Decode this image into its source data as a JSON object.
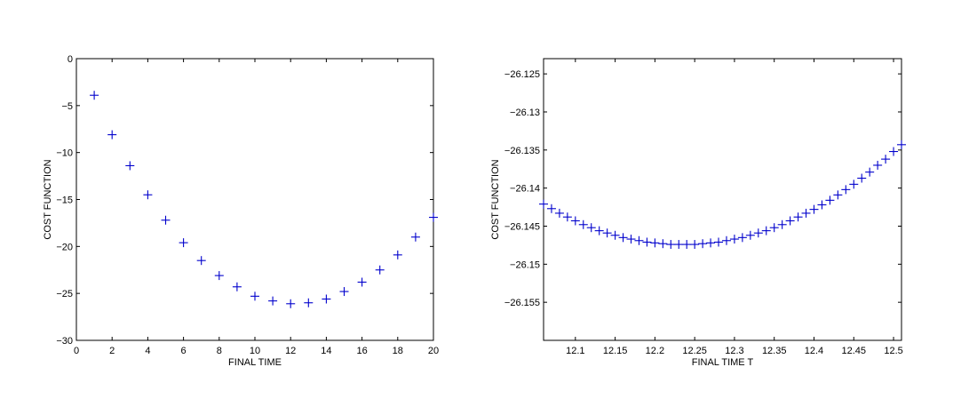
{
  "chart_data": [
    {
      "type": "scatter",
      "marker": "+",
      "marker_color": "#0000cc",
      "xlabel": "FINAL TIME",
      "ylabel": "COST FUNCTION",
      "xlim": [
        0,
        20
      ],
      "ylim": [
        -30,
        0
      ],
      "xticks": [
        0,
        2,
        4,
        6,
        8,
        10,
        12,
        14,
        16,
        18,
        20
      ],
      "xtick_labels": [
        "0",
        "2",
        "4",
        "6",
        "8",
        "10",
        "12",
        "14",
        "16",
        "18",
        "20"
      ],
      "yticks": [
        0,
        -5,
        -10,
        -15,
        -20,
        -25,
        -30
      ],
      "ytick_labels": [
        "0",
        "−5",
        "−10",
        "−15",
        "−20",
        "−25",
        "−30"
      ],
      "grid": false,
      "x": [
        1,
        2,
        3,
        4,
        5,
        6,
        7,
        8,
        9,
        10,
        11,
        12,
        13,
        14,
        15,
        16,
        17,
        18,
        19,
        20
      ],
      "y": [
        -3.9,
        -8.1,
        -11.4,
        -14.5,
        -17.2,
        -19.6,
        -21.5,
        -23.1,
        -24.3,
        -25.3,
        -25.8,
        -26.1,
        -26.0,
        -25.6,
        -24.8,
        -23.8,
        -22.5,
        -20.9,
        -19.0,
        -16.9
      ]
    },
    {
      "type": "scatter",
      "marker": "+",
      "marker_color": "#0000cc",
      "xlabel": "FINAL TIME T",
      "ylabel": "COST FUNCTION",
      "xlim": [
        12.06,
        12.51
      ],
      "ylim": [
        -26.16,
        -26.123
      ],
      "xticks": [
        12.1,
        12.15,
        12.2,
        12.25,
        12.3,
        12.35,
        12.4,
        12.45,
        12.5
      ],
      "xtick_labels": [
        "12.1",
        "12.15",
        "12.2",
        "12.25",
        "12.3",
        "12.35",
        "12.4",
        "12.45",
        "12.5"
      ],
      "yticks": [
        -26.125,
        -26.13,
        -26.135,
        -26.14,
        -26.145,
        -26.15,
        -26.155
      ],
      "ytick_labels": [
        "−26.125",
        "−26.13",
        "−26.135",
        "−26.14",
        "−26.145",
        "−26.15",
        "−26.155"
      ],
      "grid": false,
      "x": [
        12.06,
        12.07,
        12.08,
        12.09,
        12.1,
        12.11,
        12.12,
        12.13,
        12.14,
        12.15,
        12.16,
        12.17,
        12.18,
        12.19,
        12.2,
        12.21,
        12.22,
        12.23,
        12.24,
        12.25,
        12.26,
        12.27,
        12.28,
        12.29,
        12.3,
        12.31,
        12.32,
        12.33,
        12.34,
        12.35,
        12.36,
        12.37,
        12.38,
        12.39,
        12.4,
        12.41,
        12.42,
        12.43,
        12.44,
        12.45,
        12.46,
        12.47,
        12.48,
        12.49,
        12.5,
        12.51
      ],
      "y": [
        -26.1421,
        -26.1427,
        -26.1433,
        -26.1438,
        -26.1443,
        -26.1448,
        -26.1452,
        -26.1456,
        -26.1459,
        -26.1462,
        -26.1465,
        -26.1467,
        -26.1469,
        -26.1471,
        -26.1472,
        -26.1473,
        -26.1474,
        -26.1474,
        -26.1474,
        -26.1474,
        -26.1473,
        -26.1472,
        -26.1471,
        -26.1469,
        -26.1467,
        -26.1465,
        -26.1462,
        -26.1459,
        -26.1456,
        -26.1452,
        -26.1448,
        -26.1443,
        -26.1438,
        -26.1433,
        -26.1428,
        -26.1422,
        -26.1416,
        -26.1409,
        -26.1402,
        -26.1395,
        -26.1387,
        -26.1379,
        -26.137,
        -26.1362,
        -26.1352,
        -26.1343
      ]
    }
  ]
}
